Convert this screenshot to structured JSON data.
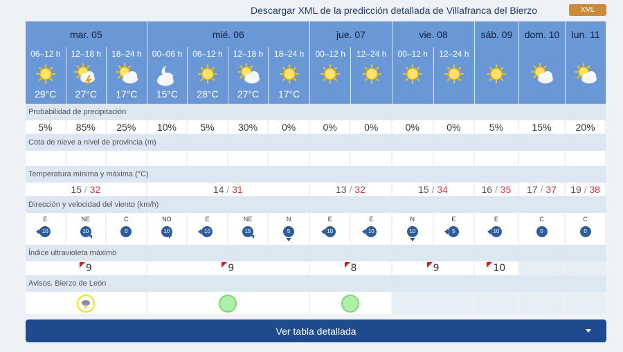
{
  "header": {
    "xml_link": "Descargar XML de la predicción detallada de Villafranca del Bierzo",
    "xml_badge": "XML"
  },
  "days": [
    {
      "label": "mar. 05",
      "span": 3
    },
    {
      "label": "mié. 06",
      "span": 4
    },
    {
      "label": "jue. 07",
      "span": 2
    },
    {
      "label": "vie. 08",
      "span": 2
    },
    {
      "label": "sáb. 09",
      "span": 1
    },
    {
      "label": "dom. 10",
      "span": 1
    },
    {
      "label": "lun. 11",
      "span": 1
    }
  ],
  "periods": [
    {
      "hours": "06–12 h",
      "sky": "sun-icon",
      "temp": "29°C",
      "precip": "5%"
    },
    {
      "hours": "12–18 h",
      "sky": "sun-cloud-storm-icon",
      "temp": "27°C",
      "precip": "85%"
    },
    {
      "hours": "18–24 h",
      "sky": "sun-cloud-icon",
      "temp": "17°C",
      "precip": "25%"
    },
    {
      "hours": "00–06 h",
      "sky": "moon-cloud-icon",
      "temp": "15°C",
      "precip": "10%"
    },
    {
      "hours": "06–12 h",
      "sky": "sun-icon",
      "temp": "28°C",
      "precip": "5%"
    },
    {
      "hours": "12–18 h",
      "sky": "sun-cloud-icon",
      "temp": "27°C",
      "precip": "30%"
    },
    {
      "hours": "18–24 h",
      "sky": "sun-icon",
      "temp": "17°C",
      "precip": "0%"
    },
    {
      "hours": "00–12 h",
      "sky": "sun-icon",
      "temp": "",
      "precip": "0%"
    },
    {
      "hours": "12–24 h",
      "sky": "sun-icon",
      "temp": "",
      "precip": "0%"
    },
    {
      "hours": "00–12 h",
      "sky": "sun-icon",
      "temp": "",
      "precip": "0%"
    },
    {
      "hours": "12–24 h",
      "sky": "sun-icon",
      "temp": "",
      "precip": "0%"
    },
    {
      "hours": "",
      "sky": "sun-icon",
      "temp": "",
      "precip": "5%"
    },
    {
      "hours": "",
      "sky": "sun-cloud-icon",
      "temp": "",
      "precip": "15%"
    },
    {
      "hours": "",
      "sky": "sun-cloud-icon",
      "temp": "",
      "precip": "20%"
    }
  ],
  "labels": {
    "precip": "Probabilidad de precipitación",
    "snow": "Cota de nieve a nivel de provincia (m)",
    "temp": "Temperatura mínima y máxima (°C)",
    "wind": "Dirección y velocidad del viento (km/h)",
    "uv": "Índice ultravioleta máximo",
    "warn": "Avisos. Bierzo de León"
  },
  "minmax": [
    {
      "min": "15",
      "max": "32"
    },
    {
      "min": "14",
      "max": "31"
    },
    {
      "min": "13",
      "max": "32"
    },
    {
      "min": "15",
      "max": "34"
    },
    {
      "min": "16",
      "max": "35"
    },
    {
      "min": "17",
      "max": "37"
    },
    {
      "min": "19",
      "max": "38"
    }
  ],
  "wind": [
    {
      "dir": "E",
      "speed": "10"
    },
    {
      "dir": "NE",
      "speed": "10"
    },
    {
      "dir": "C",
      "speed": "0"
    },
    {
      "dir": "NO",
      "speed": "10"
    },
    {
      "dir": "E",
      "speed": "10"
    },
    {
      "dir": "NE",
      "speed": "15"
    },
    {
      "dir": "N",
      "speed": "5"
    },
    {
      "dir": "E",
      "speed": "10"
    },
    {
      "dir": "E",
      "speed": "10"
    },
    {
      "dir": "N",
      "speed": "10"
    },
    {
      "dir": "E",
      "speed": "5"
    },
    {
      "dir": "E",
      "speed": "10"
    },
    {
      "dir": "C",
      "speed": "0"
    },
    {
      "dir": "C",
      "speed": "0"
    }
  ],
  "uv": [
    "9",
    "9",
    "8",
    "9",
    "10",
    "",
    ""
  ],
  "warnings": [
    "storm-warning-icon",
    "green-level-icon",
    "green-level-icon",
    "",
    "",
    "",
    ""
  ],
  "detail_button": "Ver tabla detallada",
  "colors": {
    "header_blue": "#6a97d6",
    "label_bg": "#dde7f1",
    "max_red": "#d03838",
    "button_navy": "#1f4a8e",
    "wind_circle": "#2e5d9c",
    "xml_badge": "#c98a3a"
  }
}
